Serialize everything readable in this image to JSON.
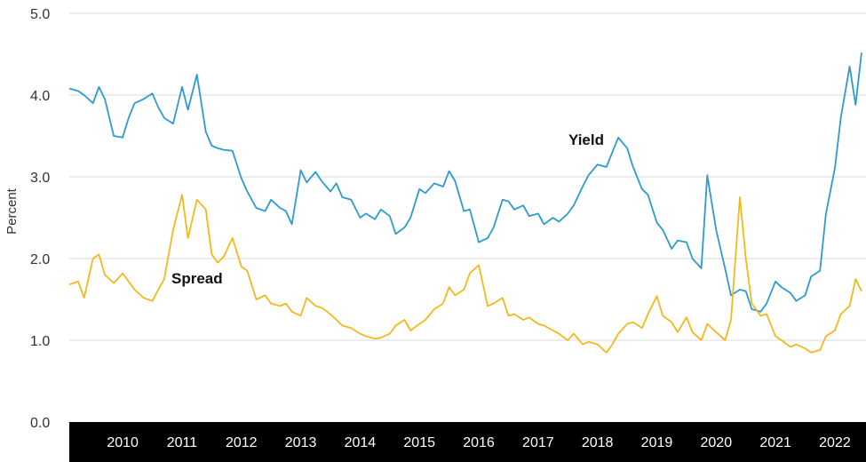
{
  "chart_data": {
    "type": "line",
    "ylabel": "Percent",
    "ylim": [
      0,
      5
    ],
    "yticks": [
      "0.0",
      "1.0",
      "2.0",
      "3.0",
      "4.0",
      "5.0"
    ],
    "xlim": [
      2009.6,
      2022.95
    ],
    "xticks": [
      "2010",
      "2011",
      "2012",
      "2013",
      "2014",
      "2015",
      "2016",
      "2017",
      "2018",
      "2019",
      "2020",
      "2021",
      "2022"
    ],
    "grid": "horizontal",
    "colors": {
      "yield": "#2e9bd0",
      "spread": "#f4b81c",
      "axis_band": "#000000"
    },
    "annotations": [
      {
        "text": "Yield",
        "series": "yield"
      },
      {
        "text": "Spread",
        "series": "spread"
      }
    ],
    "series": [
      {
        "name": "Yield",
        "x": [
          2009.6,
          2009.75,
          2009.85,
          2010.0,
          2010.1,
          2010.2,
          2010.35,
          2010.5,
          2010.6,
          2010.7,
          2010.85,
          2011.0,
          2011.1,
          2011.2,
          2011.35,
          2011.5,
          2011.6,
          2011.75,
          2011.9,
          2012.0,
          2012.1,
          2012.2,
          2012.35,
          2012.5,
          2012.6,
          2012.75,
          2012.9,
          2013.0,
          2013.15,
          2013.25,
          2013.35,
          2013.5,
          2013.6,
          2013.75,
          2013.85,
          2014.0,
          2014.1,
          2014.2,
          2014.35,
          2014.5,
          2014.6,
          2014.75,
          2014.85,
          2015.0,
          2015.1,
          2015.25,
          2015.35,
          2015.5,
          2015.6,
          2015.75,
          2015.9,
          2016.0,
          2016.1,
          2016.25,
          2016.35,
          2016.5,
          2016.65,
          2016.75,
          2016.9,
          2017.0,
          2017.1,
          2017.25,
          2017.35,
          2017.5,
          2017.6,
          2017.75,
          2017.85,
          2018.0,
          2018.1,
          2018.25,
          2018.35,
          2018.5,
          2018.65,
          2018.75,
          2018.85,
          2019.0,
          2019.1,
          2019.25,
          2019.35,
          2019.5,
          2019.6,
          2019.75,
          2019.85,
          2020.0,
          2020.1,
          2020.25,
          2020.35,
          2020.5,
          2020.65,
          2020.75,
          2020.9,
          2021.0,
          2021.1,
          2021.25,
          2021.35,
          2021.5,
          2021.6,
          2021.75,
          2021.85,
          2022.0,
          2022.1,
          2022.25,
          2022.35,
          2022.5,
          2022.6,
          2022.75,
          2022.85,
          2022.95
        ],
        "values": [
          4.08,
          4.05,
          4.0,
          3.9,
          4.1,
          3.95,
          3.5,
          3.48,
          3.72,
          3.9,
          3.95,
          4.02,
          3.85,
          3.72,
          3.65,
          4.1,
          3.82,
          4.25,
          3.55,
          3.38,
          3.35,
          3.33,
          3.32,
          2.98,
          2.82,
          2.62,
          2.58,
          2.72,
          2.62,
          2.58,
          2.42,
          3.08,
          2.93,
          3.06,
          2.95,
          2.82,
          2.92,
          2.75,
          2.72,
          2.5,
          2.55,
          2.48,
          2.6,
          2.52,
          2.3,
          2.38,
          2.5,
          2.85,
          2.8,
          2.92,
          2.88,
          3.07,
          2.95,
          2.58,
          2.6,
          2.2,
          2.25,
          2.38,
          2.72,
          2.7,
          2.6,
          2.65,
          2.52,
          2.55,
          2.42,
          2.5,
          2.45,
          2.55,
          2.65,
          2.88,
          3.02,
          3.15,
          3.12,
          3.3,
          3.48,
          3.35,
          3.12,
          2.85,
          2.78,
          2.44,
          2.35,
          2.12,
          2.22,
          2.2,
          2.0,
          1.88,
          3.02,
          2.35,
          1.88,
          1.55,
          1.62,
          1.6,
          1.38,
          1.35,
          1.45,
          1.72,
          1.65,
          1.58,
          1.48,
          1.55,
          1.78,
          1.85,
          2.55,
          3.1,
          3.72,
          4.35,
          3.88,
          4.52
        ]
      },
      {
        "name": "Spread",
        "x": [
          2009.6,
          2009.75,
          2009.85,
          2010.0,
          2010.1,
          2010.2,
          2010.35,
          2010.5,
          2010.6,
          2010.7,
          2010.85,
          2011.0,
          2011.1,
          2011.2,
          2011.35,
          2011.5,
          2011.6,
          2011.75,
          2011.9,
          2012.0,
          2012.1,
          2012.2,
          2012.35,
          2012.5,
          2012.6,
          2012.75,
          2012.9,
          2013.0,
          2013.15,
          2013.25,
          2013.35,
          2013.5,
          2013.6,
          2013.75,
          2013.85,
          2014.0,
          2014.1,
          2014.2,
          2014.35,
          2014.5,
          2014.6,
          2014.75,
          2014.85,
          2015.0,
          2015.1,
          2015.25,
          2015.35,
          2015.5,
          2015.6,
          2015.75,
          2015.9,
          2016.0,
          2016.1,
          2016.25,
          2016.35,
          2016.5,
          2016.65,
          2016.75,
          2016.9,
          2017.0,
          2017.1,
          2017.25,
          2017.35,
          2017.5,
          2017.6,
          2017.75,
          2017.85,
          2018.0,
          2018.1,
          2018.25,
          2018.35,
          2018.5,
          2018.65,
          2018.75,
          2018.85,
          2019.0,
          2019.1,
          2019.25,
          2019.35,
          2019.5,
          2019.6,
          2019.75,
          2019.85,
          2020.0,
          2020.1,
          2020.25,
          2020.35,
          2020.5,
          2020.65,
          2020.75,
          2020.9,
          2021.0,
          2021.1,
          2021.25,
          2021.35,
          2021.5,
          2021.6,
          2021.75,
          2021.85,
          2022.0,
          2022.1,
          2022.25,
          2022.35,
          2022.5,
          2022.6,
          2022.75,
          2022.85,
          2022.95
        ],
        "values": [
          1.68,
          1.72,
          1.52,
          2.0,
          2.05,
          1.8,
          1.7,
          1.82,
          1.72,
          1.62,
          1.52,
          1.48,
          1.62,
          1.75,
          2.35,
          2.78,
          2.25,
          2.72,
          2.6,
          2.05,
          1.95,
          2.02,
          2.25,
          1.9,
          1.85,
          1.5,
          1.55,
          1.45,
          1.42,
          1.45,
          1.35,
          1.3,
          1.52,
          1.42,
          1.4,
          1.32,
          1.25,
          1.18,
          1.15,
          1.08,
          1.05,
          1.02,
          1.03,
          1.08,
          1.18,
          1.25,
          1.12,
          1.2,
          1.25,
          1.38,
          1.45,
          1.65,
          1.55,
          1.62,
          1.82,
          1.92,
          1.42,
          1.45,
          1.52,
          1.3,
          1.32,
          1.25,
          1.28,
          1.2,
          1.18,
          1.12,
          1.08,
          1.0,
          1.08,
          0.95,
          0.98,
          0.95,
          0.85,
          0.95,
          1.08,
          1.2,
          1.22,
          1.15,
          1.32,
          1.54,
          1.3,
          1.22,
          1.1,
          1.28,
          1.1,
          1.0,
          1.2,
          1.1,
          1.0,
          1.25,
          2.75,
          2.0,
          1.45,
          1.3,
          1.32,
          1.05,
          1.0,
          0.92,
          0.95,
          0.9,
          0.85,
          0.88,
          1.05,
          1.12,
          1.32,
          1.42,
          1.75,
          1.6
        ]
      }
    ]
  }
}
